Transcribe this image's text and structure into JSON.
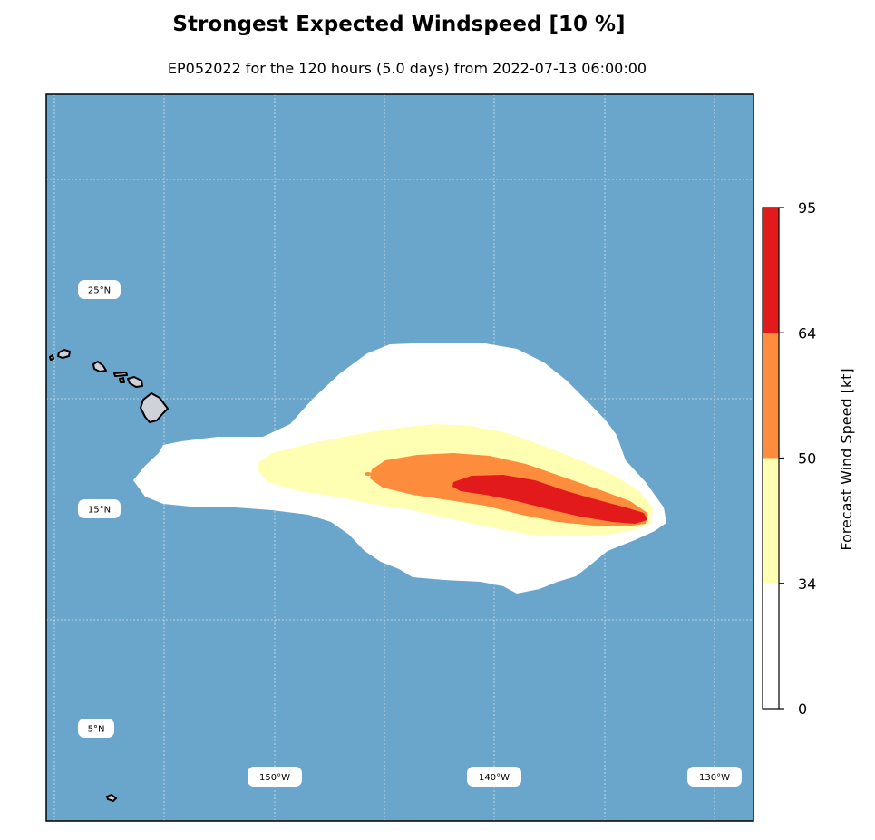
{
  "title": "Strongest Expected Windspeed [10 %]",
  "subtitle": "EP052022 for the 120 hours (5.0 days) from 2022-07-13 06:00:00",
  "map": {
    "ocean_color": "#6aa6cb",
    "gridlines": {
      "latitude_labels": [
        "25°N",
        "15°N",
        "5°N"
      ],
      "longitude_labels": [
        "150°W",
        "140°W",
        "130°W"
      ]
    },
    "land": [
      "Hawaiian Islands",
      "Palmyra Atoll"
    ]
  },
  "wind_field": {
    "bands": [
      {
        "range": "0–34 kt",
        "color": "#ffffff"
      },
      {
        "range": "34–50 kt",
        "color": "#ffffb3"
      },
      {
        "range": "50–64 kt",
        "color": "#fd8d3c"
      },
      {
        "range": "64–95 kt",
        "color": "#e31a1c"
      }
    ]
  },
  "colorbar": {
    "label": "Forecast Wind Speed [kt]",
    "ticks": [
      "0",
      "34",
      "50",
      "64",
      "95"
    ],
    "tick_values": [
      0,
      34,
      50,
      64,
      95
    ],
    "min": 0,
    "max": 95
  }
}
